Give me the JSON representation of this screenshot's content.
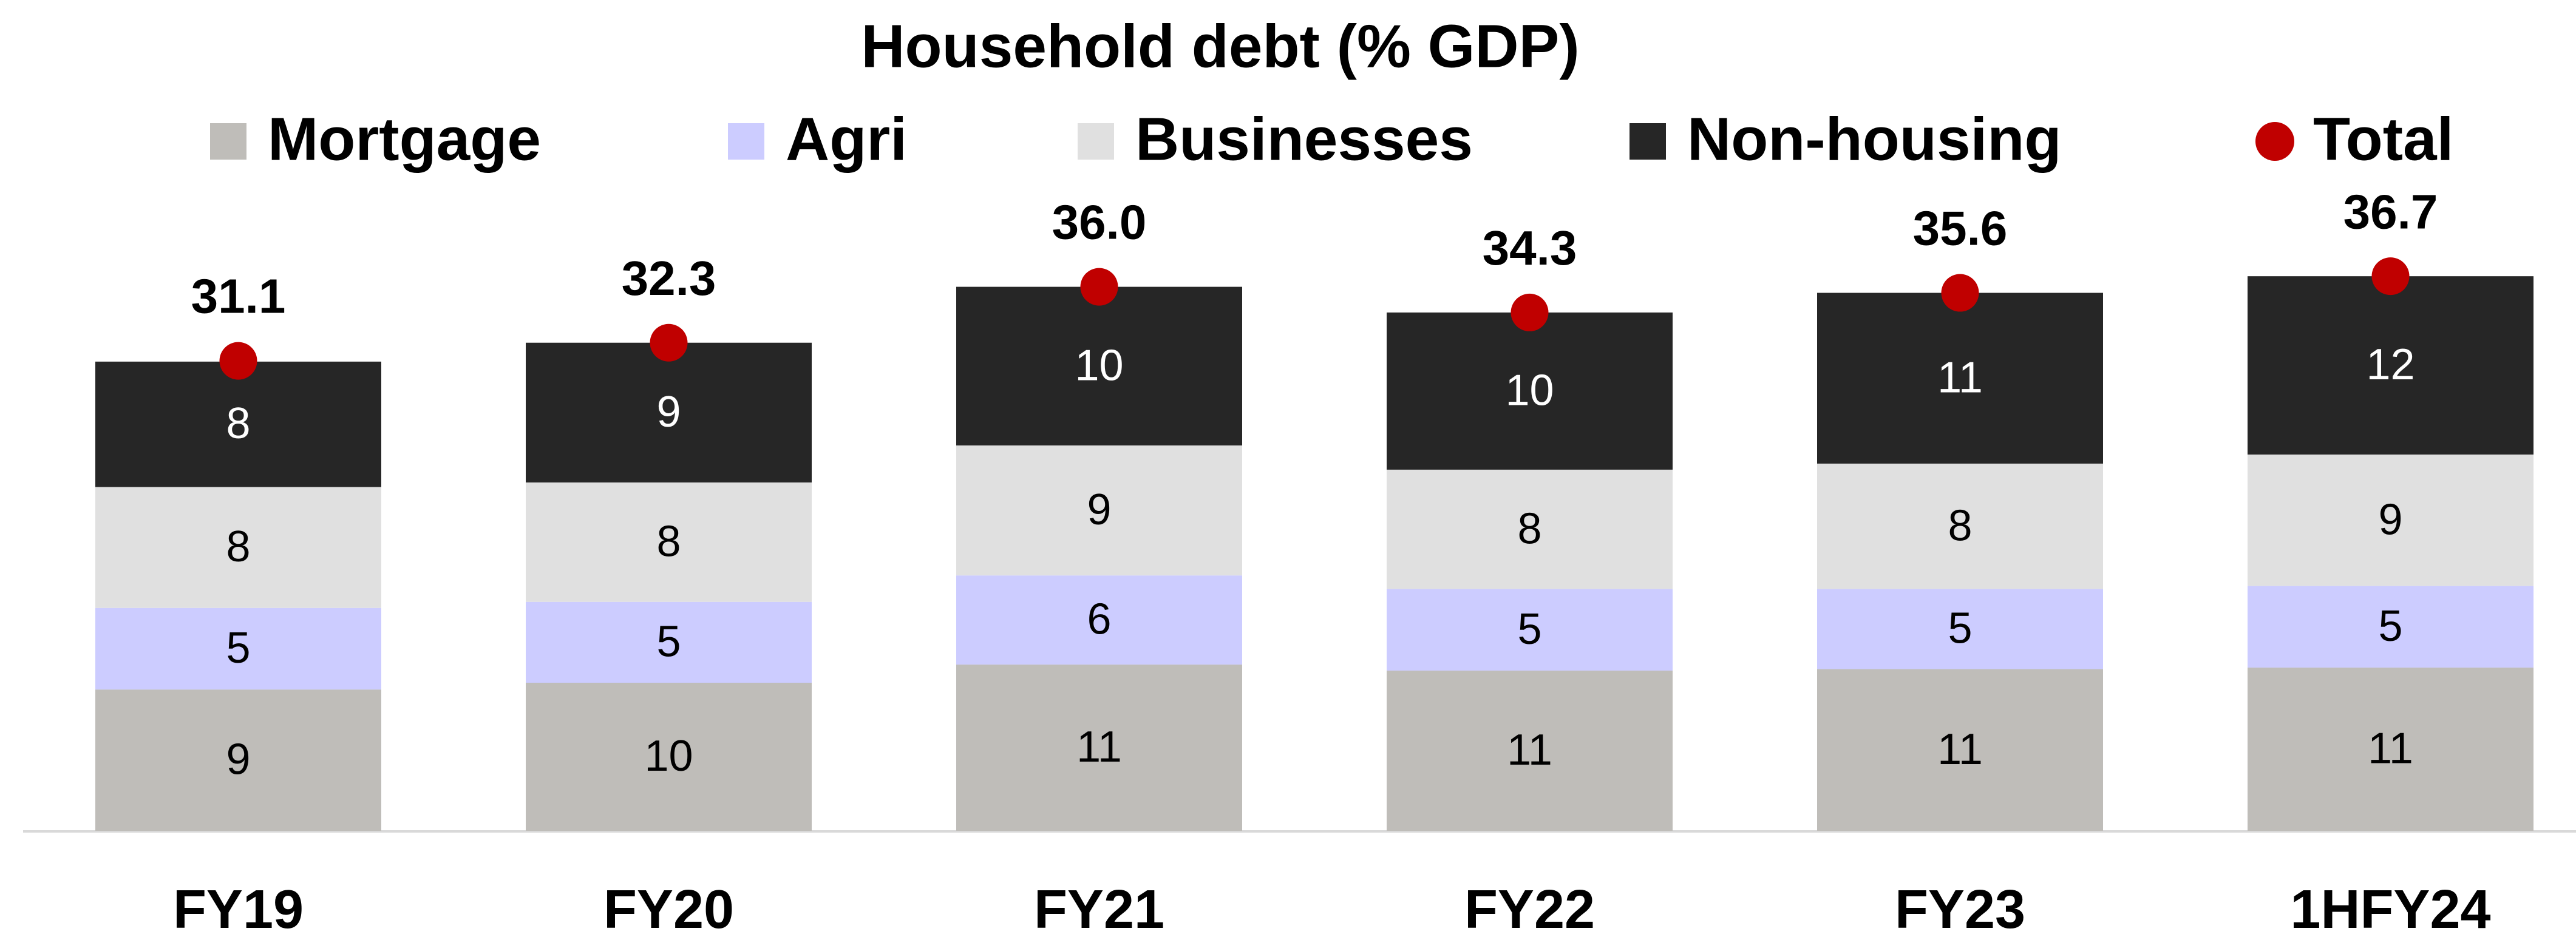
{
  "chart_data": {
    "type": "stacked_bar",
    "title": "Household debt (% GDP)",
    "categories": [
      "FY19",
      "FY20",
      "FY21",
      "FY22",
      "FY23",
      "1HFY24"
    ],
    "ylim": [
      0,
      40
    ],
    "series": [
      {
        "name": "Mortgage",
        "color": "#bfbdb9",
        "values": [
          9.35,
          9.8,
          11.0,
          10.6,
          10.7,
          10.8
        ],
        "value_labels": [
          "9",
          "10",
          "11",
          "11",
          "11",
          "11"
        ]
      },
      {
        "name": "Agri",
        "color": "#ccccff",
        "values": [
          5.4,
          5.35,
          5.9,
          5.4,
          5.3,
          5.4
        ],
        "value_labels": [
          "5",
          "5",
          "6",
          "5",
          "5",
          "5"
        ]
      },
      {
        "name": "Businesses",
        "color": "#e0e0e0",
        "values": [
          8.0,
          7.9,
          8.6,
          7.9,
          8.3,
          8.7
        ],
        "value_labels": [
          "8",
          "8",
          "9",
          "8",
          "8",
          "9"
        ]
      },
      {
        "name": "Non-housing",
        "color": "#262626",
        "values": [
          8.3,
          9.25,
          10.5,
          10.4,
          11.3,
          11.8
        ],
        "value_labels": [
          "8",
          "9",
          "10",
          "10",
          "11",
          "12"
        ]
      },
      {
        "name": "Total",
        "type": "marker",
        "color": "#c00000",
        "values": [
          31.1,
          32.3,
          36.0,
          34.3,
          35.6,
          36.7
        ],
        "value_labels": [
          "31.1",
          "32.3",
          "36.0",
          "34.3",
          "35.6",
          "36.7"
        ]
      }
    ]
  }
}
